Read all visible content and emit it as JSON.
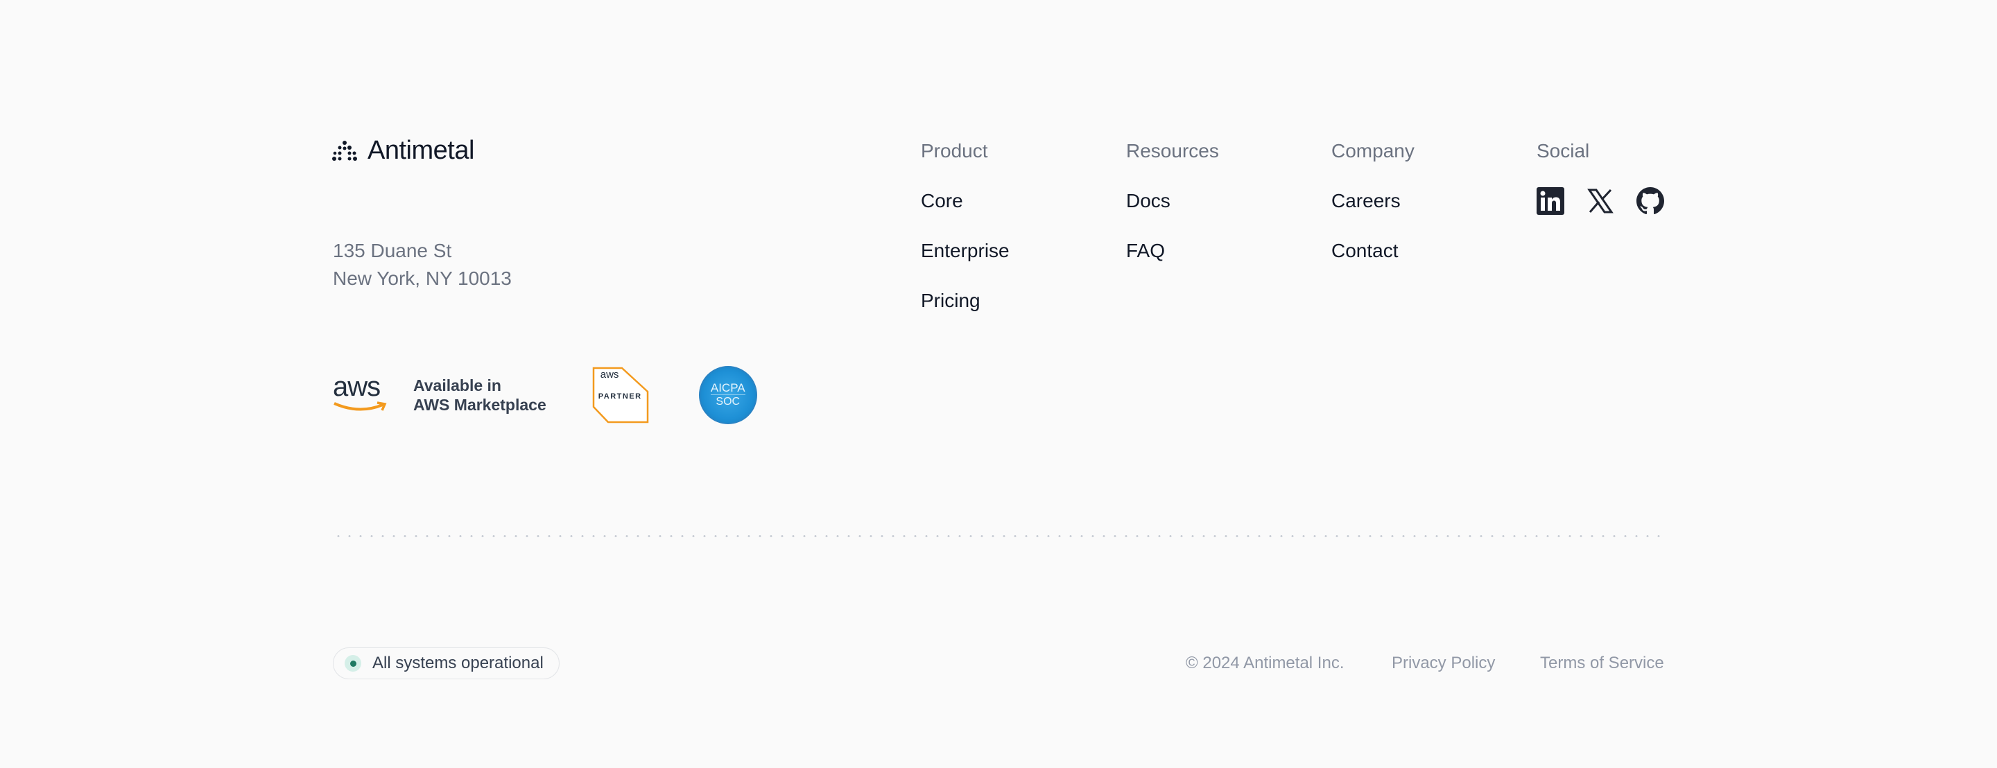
{
  "brand": {
    "name": "Antimetal"
  },
  "address": {
    "line1": "135 Duane St",
    "line2": "New York, NY 10013"
  },
  "badges": {
    "aws_logo": "aws",
    "aws_text_line1": "Available in",
    "aws_text_line2": "AWS Marketplace",
    "partner_logo": "aws",
    "partner_label": "PARTNER",
    "aicpa_line1": "AICPA",
    "aicpa_line2": "SOC"
  },
  "columns": [
    {
      "title": "Product",
      "links": [
        "Core",
        "Enterprise",
        "Pricing"
      ]
    },
    {
      "title": "Resources",
      "links": [
        "Docs",
        "FAQ"
      ]
    },
    {
      "title": "Company",
      "links": [
        "Careers",
        "Contact"
      ]
    },
    {
      "title": "Social",
      "icons": [
        "linkedin-icon",
        "x-icon",
        "github-icon"
      ]
    }
  ],
  "status": {
    "label": "All systems operational",
    "color": "#1f7a62"
  },
  "legal": {
    "copyright": "© 2024 Antimetal Inc.",
    "privacy": "Privacy Policy",
    "terms": "Terms of Service"
  },
  "colors": {
    "background": "#fafafa",
    "text": "#111827",
    "muted": "#6b7280",
    "aws_orange": "#f39a1e",
    "aicpa_blue": "#1e90d6"
  }
}
